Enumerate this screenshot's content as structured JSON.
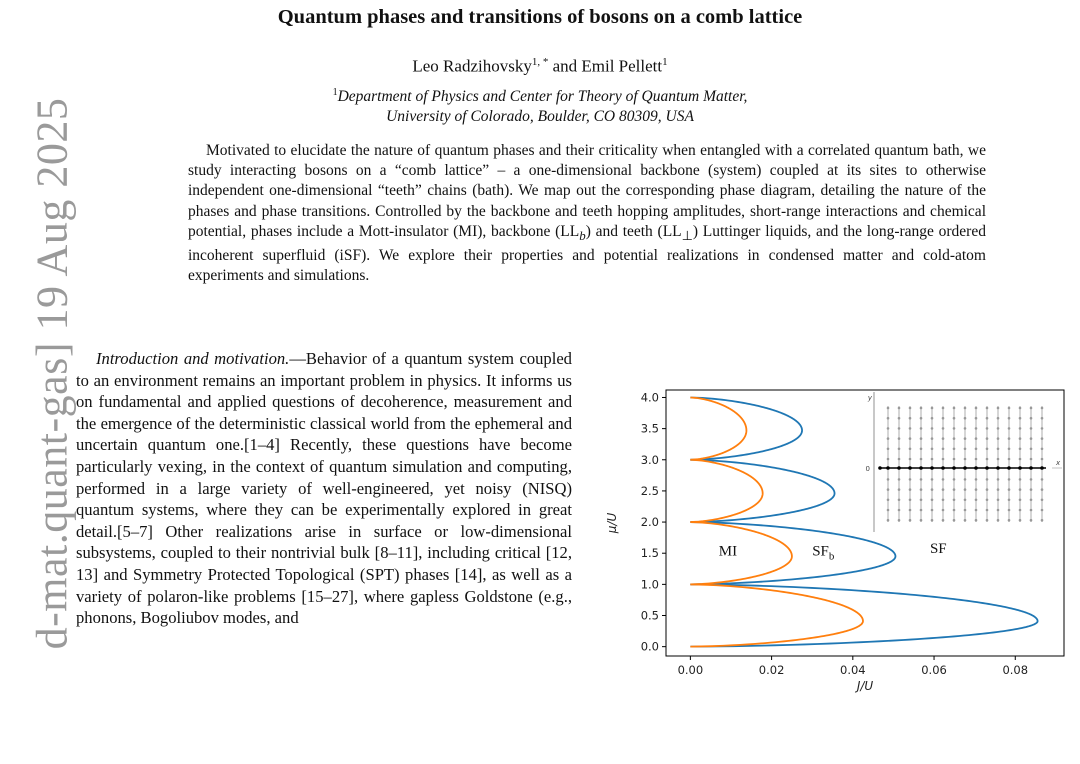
{
  "arxiv_id": "d-mat.quant-gas]  19 Aug 2025",
  "title": "Quantum phases and transitions of bosons on a comb lattice",
  "authors": {
    "author1": "Leo Radzihovsky",
    "author1_sup": "1, *",
    "and": "and",
    "author2": "Emil Pellett",
    "author2_sup": "1"
  },
  "affiliation": {
    "sup": "1",
    "line1": "Department of Physics and Center for Theory of Quantum Matter,",
    "line2": "University of Colorado, Boulder, CO 80309, USA"
  },
  "abstract": {
    "part1": "Motivated to elucidate the nature of quantum phases and their criticality when entangled with a correlated quantum bath, we study interacting bosons on a “comb lattice” – a one-dimensional backbone (system) coupled at its sites to otherwise independent one-dimensional “teeth” chains (bath). We map out the corresponding phase diagram, detailing the nature of the phases and phase transitions. Controlled by the backbone and teeth hopping amplitudes, short-range interactions and chemical potential, phases include a Mott-insulator (MI), backbone (LL",
    "sub_b": "b",
    "part2": ") and teeth (LL",
    "sub_perp": "⊥",
    "part3": ") Luttinger liquids, and the long-range ordered incoherent superfluid (iSF). We explore their properties and potential realizations in condensed matter and cold-atom experiments and simulations."
  },
  "intro": {
    "lead": "Introduction and motivation.",
    "body": "—Behavior of a quantum system coupled to an environment remains an important problem in physics. It informs us on fundamental and applied questions of decoherence, measurement and the emergence of the deterministic classical world from the ephemeral and uncertain quantum one.[1–4] Recently, these questions have become particularly vexing, in the context of quantum simulation and computing, performed in a large variety of well-engineered, yet noisy (NISQ) quantum systems, where they can be experimentally explored in great detail.[5–7] Other realizations arise in surface or low-dimensional subsystems, coupled to their nontrivial bulk [8–11], including critical [12, 13] and Symmetry Protected Topological (SPT) phases [14], as well as a variety of polaron-like problems [15–27], where gapless Goldstone (e.g., phonons, Bogoliubov modes, and"
  },
  "chart_data": {
    "type": "line",
    "xlabel": "J/U",
    "ylabel": "μ/U",
    "xlim": [
      -0.006,
      0.092
    ],
    "ylim": [
      -0.15,
      4.12
    ],
    "xticks": [
      "0.00",
      "0.02",
      "0.04",
      "0.06",
      "0.08"
    ],
    "xtick_values": [
      0.0,
      0.02,
      0.04,
      0.06,
      0.08
    ],
    "yticks": [
      "0.0",
      "0.5",
      "1.0",
      "1.5",
      "2.0",
      "2.5",
      "3.0",
      "3.5",
      "4.0"
    ],
    "ytick_values": [
      0,
      0.5,
      1.0,
      1.5,
      2.0,
      2.5,
      3.0,
      3.5,
      4.0
    ],
    "series": [
      {
        "color": "#1f77b4",
        "lobes": [
          {
            "n": 0,
            "peak_x": 0.0855,
            "peak_y": 0.41
          },
          {
            "n": 1,
            "peak_x": 0.0505,
            "peak_y": 1.45
          },
          {
            "n": 2,
            "peak_x": 0.0355,
            "peak_y": 2.46
          },
          {
            "n": 3,
            "peak_x": 0.0275,
            "peak_y": 3.47
          }
        ]
      },
      {
        "color": "#ff7f0e",
        "lobes": [
          {
            "n": 0,
            "peak_x": 0.0425,
            "peak_y": 0.41
          },
          {
            "n": 1,
            "peak_x": 0.025,
            "peak_y": 1.45
          },
          {
            "n": 2,
            "peak_x": 0.0178,
            "peak_y": 2.46
          },
          {
            "n": 3,
            "peak_x": 0.0138,
            "peak_y": 3.47
          }
        ]
      }
    ],
    "annotations": [
      {
        "text": "MI",
        "x": 0.007,
        "y": 1.46
      },
      {
        "text": "SF",
        "sub": "b",
        "x": 0.03,
        "y": 1.46
      },
      {
        "text": "SF",
        "x": 0.059,
        "y": 1.5
      }
    ],
    "grid": false,
    "inset": {
      "type": "comb-lattice",
      "ylabel": "y",
      "xlabel": "x",
      "origin_label": "0",
      "backbone_color": "#000000",
      "teeth_color": "#999999"
    }
  }
}
